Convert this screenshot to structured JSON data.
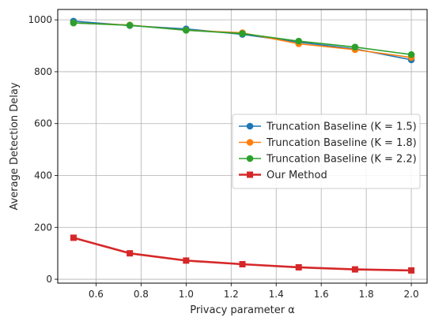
{
  "chart_data": {
    "type": "line",
    "title": "",
    "xlabel": "Privacy parameter α",
    "ylabel": "Average Detection Delay",
    "xlim": [
      0.43,
      2.07
    ],
    "ylim": [
      -15,
      1040
    ],
    "xticks": [
      0.6,
      0.8,
      1.0,
      1.2,
      1.4,
      1.6,
      1.8,
      2.0
    ],
    "xtick_labels": [
      "0.6",
      "0.8",
      "1.0",
      "1.2",
      "1.4",
      "1.6",
      "1.8",
      "2.0"
    ],
    "yticks": [
      0,
      200,
      400,
      600,
      800,
      1000
    ],
    "ytick_labels": [
      "0",
      "200",
      "400",
      "600",
      "800",
      "1000"
    ],
    "grid": true,
    "legend_position": "center-right",
    "x": [
      0.5,
      0.75,
      1.0,
      1.25,
      1.5,
      1.75,
      2.0
    ],
    "series": [
      {
        "name": "Truncation Baseline (K = 1.5)",
        "color": "#1f77b4",
        "marker": "circle",
        "values": [
          995,
          978,
          965,
          944,
          914,
          888,
          846
        ]
      },
      {
        "name": "Truncation Baseline (K = 1.8)",
        "color": "#ff7f0e",
        "marker": "circle",
        "values": [
          988,
          980,
          960,
          950,
          908,
          885,
          855
        ]
      },
      {
        "name": "Truncation Baseline (K = 2.2)",
        "color": "#2ca02c",
        "marker": "circle",
        "values": [
          988,
          979,
          960,
          947,
          918,
          895,
          866
        ]
      },
      {
        "name": "Our Method",
        "color": "#d62728",
        "marker": "square",
        "values": [
          160,
          100,
          72,
          58,
          46,
          38,
          34
        ]
      }
    ]
  }
}
